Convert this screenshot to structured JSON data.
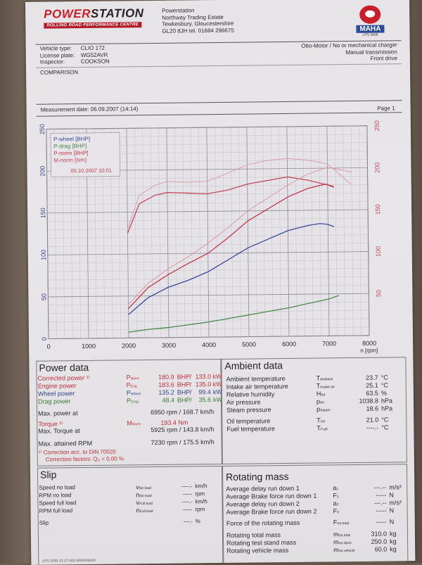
{
  "header": {
    "logo_part1": "POWER",
    "logo_part2": "STATION",
    "logo_tagline": "ROLLING ROAD PERFORMANCE CENTRE",
    "address_lines": [
      "Powerstation",
      "Northway Trading Estate",
      "Tewkesbury, Gloucestershire",
      "GL20 8JH   tel. 01684 296675"
    ],
    "maha_logo": "MAHA",
    "maha_model": "LPS 3000"
  },
  "vehicle": {
    "type_label": "Vehicle type:",
    "type_value": "CLIO 172",
    "plate_label": "License plate:",
    "plate_value": "WG52AVR",
    "inspector_label": "Inspector:",
    "inspector_value": "COOKSON",
    "charger": "Otto-Motor / No or mechanical charger",
    "transmission": "Manual transmission",
    "drive": "Front drive",
    "comparison": "COMPARISON"
  },
  "measurement": {
    "date_label": "Measurement date: 06.09.2007 (14:14)",
    "page": "Page 1"
  },
  "chart_data": {
    "type": "line",
    "xlabel": "n [rpm]",
    "xlim": [
      0,
      8000
    ],
    "ylim_left": [
      0,
      250
    ],
    "ylim_right": [
      0,
      250
    ],
    "x_ticks": [
      0,
      1000,
      2000,
      3000,
      4000,
      5000,
      6000,
      7000,
      8000
    ],
    "y_ticks_left": [
      0,
      50,
      100,
      150,
      200,
      250
    ],
    "y_ticks_right": [
      50,
      100,
      150,
      200,
      250
    ],
    "legend": [
      "P-wheel [BHP]",
      "P-drag [BHP]",
      "P-norm [BHP]",
      "M-norm [Nm]"
    ],
    "legend_date": "05.10.2007 10:01",
    "series": [
      {
        "name": "P-wheel [BHP]",
        "color": "#3a4a9a",
        "x": [
          2000,
          2500,
          3000,
          3500,
          4000,
          4500,
          5000,
          5500,
          6000,
          6500,
          6800,
          7000,
          7150
        ],
        "y": [
          28,
          48,
          60,
          68,
          78,
          92,
          106,
          116,
          126,
          132,
          134,
          133,
          130
        ]
      },
      {
        "name": "P-drag [BHP]",
        "color": "#4a8a4a",
        "x": [
          2000,
          2500,
          3000,
          3500,
          4000,
          4500,
          5000,
          5500,
          6000,
          6500,
          7000,
          7250
        ],
        "y": [
          7,
          10,
          12,
          15,
          18,
          22,
          26,
          30,
          34,
          39,
          44,
          48
        ]
      },
      {
        "name": "P-norm [BHP]",
        "color": "#c03a48",
        "x": [
          2000,
          2500,
          3000,
          3500,
          4000,
          4500,
          5000,
          5500,
          6000,
          6500,
          6950,
          7150
        ],
        "y": [
          35,
          60,
          75,
          88,
          100,
          118,
          138,
          152,
          166,
          176,
          181,
          178
        ]
      },
      {
        "name": "M-norm [Nm]",
        "color": "#c04a5a",
        "x": [
          2000,
          2300,
          2700,
          3000,
          3500,
          4000,
          4500,
          5000,
          5500,
          6000,
          6500,
          7000,
          7150
        ],
        "y": [
          125,
          160,
          170,
          173,
          172,
          171,
          175,
          182,
          186,
          190,
          186,
          180,
          177
        ]
      },
      {
        "name": "P-norm comparison",
        "color": "#d89aa0",
        "x": [
          2000,
          2500,
          3000,
          3500,
          4000,
          4500,
          5000,
          5500,
          6000,
          6500,
          7000,
          7600
        ],
        "y": [
          40,
          65,
          82,
          96,
          112,
          130,
          150,
          165,
          180,
          193,
          201,
          195
        ]
      },
      {
        "name": "M-norm comparison",
        "color": "#d8a0a8",
        "x": [
          2000,
          2300,
          2700,
          3000,
          3500,
          4000,
          4500,
          5000,
          5500,
          6000,
          6500,
          7000,
          7600
        ],
        "y": [
          130,
          170,
          182,
          186,
          185,
          186,
          195,
          205,
          210,
          212,
          210,
          205,
          180
        ]
      }
    ]
  },
  "power_data": {
    "title": "Power data",
    "rows": [
      {
        "label": "Corrected power ¹⁾",
        "sym": "P",
        "sub": "Norm",
        "v1": "180.9",
        "u1": "BHP",
        "v2": "133.0",
        "u2": "kW",
        "color": "red"
      },
      {
        "label": "Engine power",
        "sym": "P",
        "sub": "Eng",
        "v1": "183.6",
        "u1": "BHP",
        "v2": "135.0",
        "u2": "kW",
        "color": "red"
      },
      {
        "label": "Wheel power",
        "sym": "P",
        "sub": "Wheel",
        "v1": "135.2",
        "u1": "BHP",
        "v2": "99.4",
        "u2": "kW",
        "color": "blue"
      },
      {
        "label": "Drag power",
        "sym": "P",
        "sub": "Drag",
        "v1": "48.4",
        "u1": "BHP",
        "v2": "35.6",
        "u2": "kW",
        "color": "green"
      }
    ],
    "max_power_label": "Max. power at",
    "max_power_rpm": "6950",
    "max_power_speed": "168.7",
    "torque_label": "Torque ¹⁾",
    "torque_sym": "M",
    "torque_sub": "Norm",
    "torque_value": "193.4",
    "torque_unit": "Nm",
    "max_torque_label": "Max. Torque at",
    "max_torque_rpm": "5925",
    "max_torque_speed": "143.8",
    "max_rpm_label": "Max. attained RPM",
    "max_rpm": "7230",
    "max_rpm_speed": "175.5",
    "rpm_unit": "rpm",
    "speed_unit": "km/h",
    "slash": "/",
    "note1": "¹⁾ Correction acc. to DIN 70020",
    "note2": "Correction factors: Q₀ =   0.00 %"
  },
  "ambient_data": {
    "title": "Ambient data",
    "rows": [
      {
        "label": "Ambient temperature",
        "sym": "T",
        "sub": "Ambient",
        "value": "23.7",
        "unit": "°C"
      },
      {
        "label": "Intake air temperature",
        "sym": "T",
        "sub": "Intake air",
        "value": "25.1",
        "unit": "°C"
      },
      {
        "label": "Relative humidity",
        "sym": "H",
        "sub": "Air",
        "value": "63.5",
        "unit": "%"
      },
      {
        "label": "Air pressure",
        "sym": "p",
        "sub": "Air",
        "value": "1038.8",
        "unit": "hPa"
      },
      {
        "label": "Steam pressure",
        "sym": "p",
        "sub": "Steam",
        "value": "18.6",
        "unit": "hPa"
      },
      {
        "label": "Oil temperature",
        "sym": "T",
        "sub": "Oil",
        "value": "21.0",
        "unit": "°C"
      },
      {
        "label": "Fuel temperature",
        "sym": "T",
        "sub": "Fuel",
        "value": "----.-",
        "unit": "°C"
      }
    ]
  },
  "slip": {
    "title": "Slip",
    "rows": [
      {
        "label": "Speed no load",
        "sym": "v",
        "sub": "No load",
        "value": "----.-",
        "unit": "km/h"
      },
      {
        "label": "RPM no load",
        "sym": "n",
        "sub": "No load",
        "value": "-----",
        "unit": "rpm"
      },
      {
        "label": "Speed full load",
        "sym": "v",
        "sub": "Full load",
        "value": "----.-",
        "unit": "km/h"
      },
      {
        "label": "RPM full load",
        "sym": "n",
        "sub": "Full load",
        "value": "-----",
        "unit": "rpm"
      },
      {
        "label": "Slip",
        "sym": "",
        "sub": "",
        "value": "---.-",
        "unit": "%"
      }
    ]
  },
  "rotating_mass": {
    "title": "Rotating mass",
    "rows": [
      {
        "label": "Average delay run down 1",
        "sym": "a",
        "sub": "1",
        "value": "---.--",
        "unit": "m/s²"
      },
      {
        "label": "Average Brake force run down 1",
        "sym": "F",
        "sub": "1",
        "value": "-----",
        "unit": "N"
      },
      {
        "label": "Average delay run down 2",
        "sym": "a",
        "sub": "2",
        "value": "---.--",
        "unit": "m/s²"
      },
      {
        "label": "Average Brake force run down 2",
        "sym": "F",
        "sub": "2",
        "value": "-----",
        "unit": "N"
      },
      {
        "label": "Force of the rotating mass",
        "sym": "F",
        "sub": "rot.total",
        "value": "-----",
        "unit": "N"
      },
      {
        "label": "Rotating total mass",
        "sym": "m",
        "sub": "rot.total",
        "value": "310.0",
        "unit": "kg"
      },
      {
        "label": "Rotating test stand mass",
        "sym": "m",
        "sub": "rot.dyno",
        "value": "250.0",
        "unit": "kg"
      },
      {
        "label": "Rotating vehicle mass",
        "sym": "m",
        "sub": "rot.vehicle",
        "value": "60.0",
        "unit": "kg"
      }
    ]
  },
  "footer": "LPS 3000 V1.07 000 0000000000"
}
